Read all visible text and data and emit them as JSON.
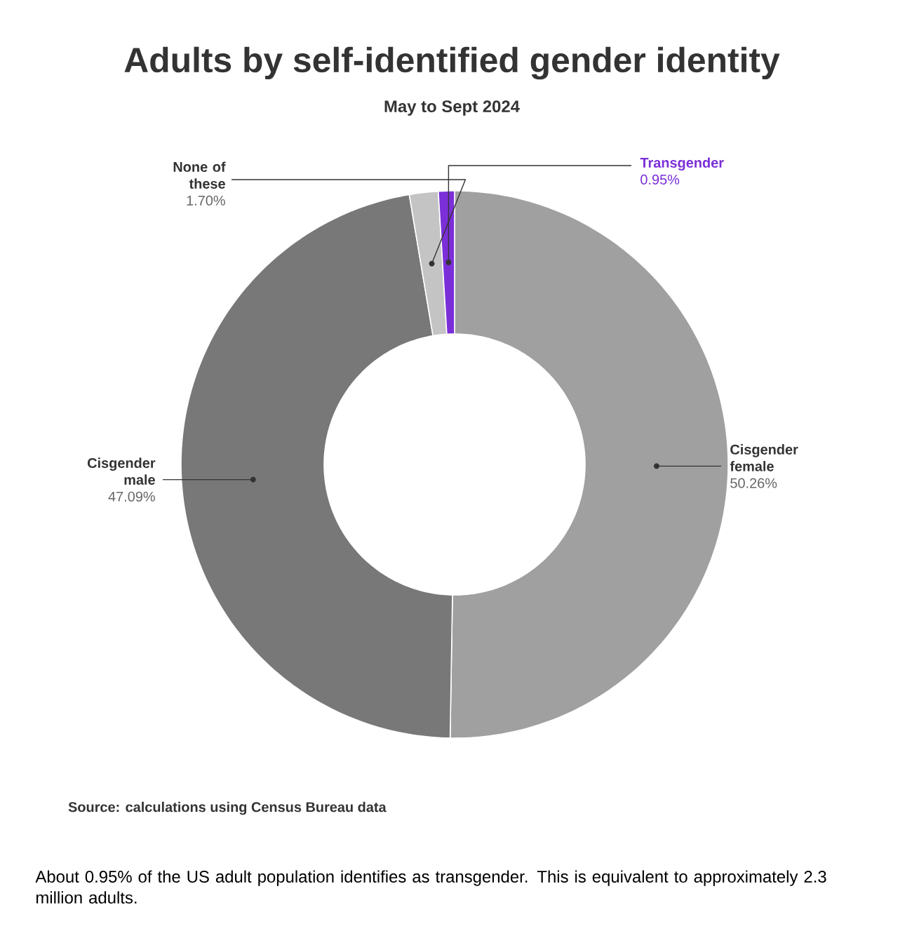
{
  "chart_data": {
    "type": "donut",
    "title": "Adults by self-identified gender identity",
    "subtitle": "May to Sept 2024",
    "categories": [
      "Cisgender female",
      "Cisgender male",
      "None of these",
      "Transgender"
    ],
    "values": [
      50.26,
      47.09,
      1.7,
      0.95
    ],
    "colors": [
      "#a0a0a0",
      "#787878",
      "#c4c4c4",
      "#7b2fd8"
    ],
    "value_labels": [
      "50.26%",
      "47.09%",
      "1.70%",
      "0.95%"
    ],
    "annotations": [
      "Source: calculations using Census Bureau data",
      "About 0.95% of the US adult population identifies as transgender. This is equivalent to approximately 2.3 million adults."
    ]
  }
}
